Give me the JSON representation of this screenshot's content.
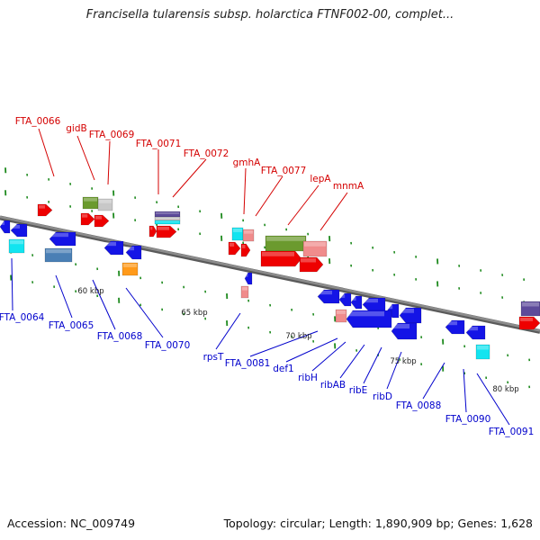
{
  "title": "Francisella tularensis subsp. holarctica FTNF002-00, complet...",
  "accession_text": "Accession: NC_009749",
  "topology_text": "Topology: circular; Length: 1,890,909 bp; Genes: 1,628",
  "colors": {
    "backbone": "#8c8c8c",
    "tick": "#1e8a1e",
    "forward_label": "#d40000",
    "reverse_label": "#0000cc",
    "red": "#ee0000",
    "blue": "#1414e6",
    "cyan": "#12e4f0",
    "olive": "#6b9a2e",
    "pink": "#f08c8c",
    "grey": "#c8c8c8",
    "orange": "#ff9a1a",
    "steelblue": "#4a7fb5",
    "purple": "#5c4a9a"
  },
  "scale_labels": [
    "60 kbp",
    "65 kbp",
    "70 kbp",
    "75 kbp",
    "80 kbp"
  ],
  "forward_genes": [
    "FTA_0066",
    "gidB",
    "FTA_0069",
    "FTA_0071",
    "FTA_0072",
    "gmhA",
    "FTA_0077",
    "lepA",
    "mnmA"
  ],
  "reverse_genes": [
    "FTA_0064",
    "FTA_0065",
    "FTA_0068",
    "FTA_0070",
    "rpsT",
    "FTA_0081",
    "def1",
    "ribH",
    "ribAB",
    "ribE",
    "ribD",
    "FTA_0088",
    "FTA_0090",
    "FTA_0091"
  ]
}
